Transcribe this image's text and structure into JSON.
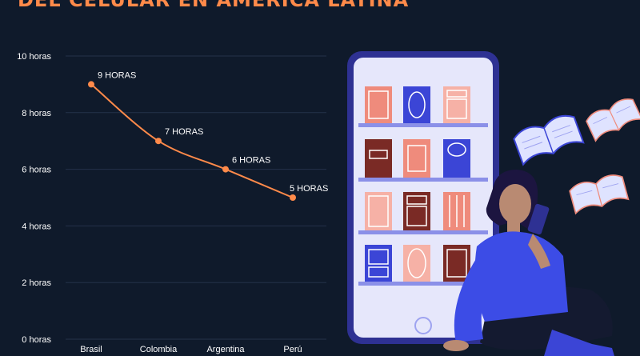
{
  "header": {
    "title": "DEL CELULAR EN AMÉRICA LATINA"
  },
  "colors": {
    "background": "#0f1a2b",
    "accent": "#ff8a4a",
    "line": "#ff8a4a",
    "phone": "#2e3193",
    "person_shirt": "#3c4ce6"
  },
  "chart_data": {
    "type": "line",
    "categories": [
      "Brasil",
      "Colombia",
      "Argentina",
      "Perú"
    ],
    "series": [
      {
        "values": [
          9,
          7,
          6,
          5
        ]
      }
    ],
    "data_labels": [
      "9 HORAS",
      "7 HORAS",
      "6 HORAS",
      "5 HORAS"
    ],
    "yticks": [
      "0 horas",
      "2 horas",
      "4 horas",
      "6 horas",
      "8 horas",
      "10 horas"
    ],
    "ylim": [
      0,
      10
    ],
    "grid": true
  },
  "illustration": {
    "icons": [
      "phone-icon",
      "bookshelf-icon",
      "open-book-icon",
      "reading-woman-icon"
    ]
  }
}
